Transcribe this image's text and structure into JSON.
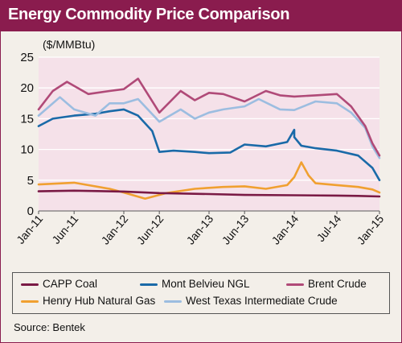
{
  "title": "Energy Commodity Price Comparison",
  "source": "Source: Bentek",
  "colors": {
    "frame": "#8a1c4e",
    "panel": "#f3efe9",
    "plot_bg": "#f5e1e9",
    "grid": "#ffffff"
  },
  "chart_data": {
    "type": "line",
    "title": "Energy Commodity Price Comparison",
    "ylabel": "($/MMBtu)",
    "xlabel": "",
    "ylim": [
      0,
      25
    ],
    "yticks": [
      "0",
      "5",
      "10",
      "15",
      "20",
      "25"
    ],
    "xticks": [
      "Jan-11",
      "Jun-11",
      "Jan-12",
      "Jun-12",
      "Jan-13",
      "Jun-13",
      "Jan-14",
      "Jul-14",
      "Jan-15"
    ],
    "x_range": [
      "2011-01",
      "2015-01"
    ],
    "grid": true,
    "legend_position": "bottom",
    "series": [
      {
        "name": "CAPP Coal",
        "color": "#7a1a45",
        "x": [
          "2011-01",
          "2011-06",
          "2012-01",
          "2012-06",
          "2013-01",
          "2013-06",
          "2014-01",
          "2014-07",
          "2014-10",
          "2015-01"
        ],
        "values": [
          3.2,
          3.3,
          3.15,
          2.9,
          2.75,
          2.6,
          2.55,
          2.5,
          2.45,
          2.35
        ]
      },
      {
        "name": "Mont Belvieu NGL",
        "color": "#1a6aa8",
        "x": [
          "2011-01",
          "2011-03",
          "2011-06",
          "2011-09",
          "2011-11",
          "2012-01",
          "2012-03",
          "2012-05",
          "2012-06",
          "2012-08",
          "2012-11",
          "2013-01",
          "2013-04",
          "2013-06",
          "2013-09",
          "2013-12",
          "2014-01",
          "2014-01",
          "2014-02",
          "2014-04",
          "2014-07",
          "2014-10",
          "2014-12",
          "2015-01"
        ],
        "values": [
          13.8,
          15.0,
          15.5,
          15.8,
          16.2,
          16.5,
          15.5,
          13.0,
          9.6,
          9.8,
          9.6,
          9.4,
          9.5,
          10.8,
          10.5,
          11.2,
          13.2,
          12.0,
          10.6,
          10.2,
          9.8,
          9.0,
          7.0,
          5.0
        ]
      },
      {
        "name": "Brent Crude",
        "color": "#b04a78",
        "x": [
          "2011-01",
          "2011-03",
          "2011-05",
          "2011-08",
          "2011-11",
          "2012-01",
          "2012-03",
          "2012-06",
          "2012-09",
          "2012-11",
          "2013-01",
          "2013-03",
          "2013-06",
          "2013-09",
          "2013-11",
          "2014-01",
          "2014-04",
          "2014-07",
          "2014-09",
          "2014-11",
          "2014-12",
          "2015-01"
        ],
        "values": [
          16.5,
          19.5,
          21.0,
          19.0,
          19.5,
          19.8,
          21.5,
          16.0,
          19.5,
          18.0,
          19.2,
          19.0,
          17.8,
          19.5,
          18.8,
          18.6,
          18.8,
          19.0,
          17.0,
          13.8,
          11.0,
          9.0
        ]
      },
      {
        "name": "Henry Hub Natural Gas",
        "color": "#f0a030",
        "x": [
          "2011-01",
          "2011-06",
          "2011-11",
          "2012-01",
          "2012-04",
          "2012-07",
          "2012-11",
          "2013-03",
          "2013-06",
          "2013-09",
          "2013-12",
          "2014-01",
          "2014-02",
          "2014-03",
          "2014-04",
          "2014-07",
          "2014-10",
          "2014-12",
          "2015-01"
        ],
        "values": [
          4.3,
          4.6,
          3.6,
          3.0,
          2.0,
          2.9,
          3.6,
          3.9,
          4.0,
          3.6,
          4.2,
          5.5,
          7.9,
          5.8,
          4.5,
          4.2,
          3.9,
          3.5,
          3.0
        ]
      },
      {
        "name": "West Texas Intermediate Crude",
        "color": "#9cbde0",
        "x": [
          "2011-01",
          "2011-04",
          "2011-06",
          "2011-09",
          "2011-11",
          "2012-01",
          "2012-03",
          "2012-06",
          "2012-09",
          "2012-11",
          "2013-01",
          "2013-03",
          "2013-06",
          "2013-08",
          "2013-11",
          "2014-01",
          "2014-04",
          "2014-07",
          "2014-09",
          "2014-11",
          "2014-12",
          "2015-01"
        ],
        "values": [
          15.5,
          18.5,
          16.5,
          15.5,
          17.5,
          17.5,
          18.2,
          14.5,
          16.5,
          15.0,
          16.0,
          16.5,
          17.0,
          18.2,
          16.5,
          16.4,
          17.8,
          17.5,
          16.0,
          13.5,
          10.5,
          8.6
        ]
      }
    ]
  }
}
